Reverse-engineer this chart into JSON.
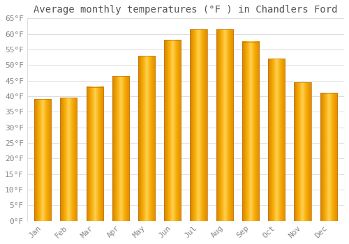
{
  "title": "Average monthly temperatures (°F ) in Chandlers Ford",
  "months": [
    "Jan",
    "Feb",
    "Mar",
    "Apr",
    "May",
    "Jun",
    "Jul",
    "Aug",
    "Sep",
    "Oct",
    "Nov",
    "Dec"
  ],
  "values": [
    39,
    39.5,
    43,
    46.5,
    53,
    58,
    61.5,
    61.5,
    57.5,
    52,
    44.5,
    41
  ],
  "bar_color_left": "#E8900A",
  "bar_color_center": "#FFCC44",
  "bar_color_right": "#F5A800",
  "background_color": "#FFFFFF",
  "grid_color": "#DDDDDD",
  "ylim": [
    0,
    65
  ],
  "yticks": [
    0,
    5,
    10,
    15,
    20,
    25,
    30,
    35,
    40,
    45,
    50,
    55,
    60,
    65
  ],
  "title_fontsize": 10,
  "tick_fontsize": 8,
  "tick_color": "#888888",
  "title_color": "#555555",
  "figsize": [
    5.0,
    3.5
  ],
  "dpi": 100
}
